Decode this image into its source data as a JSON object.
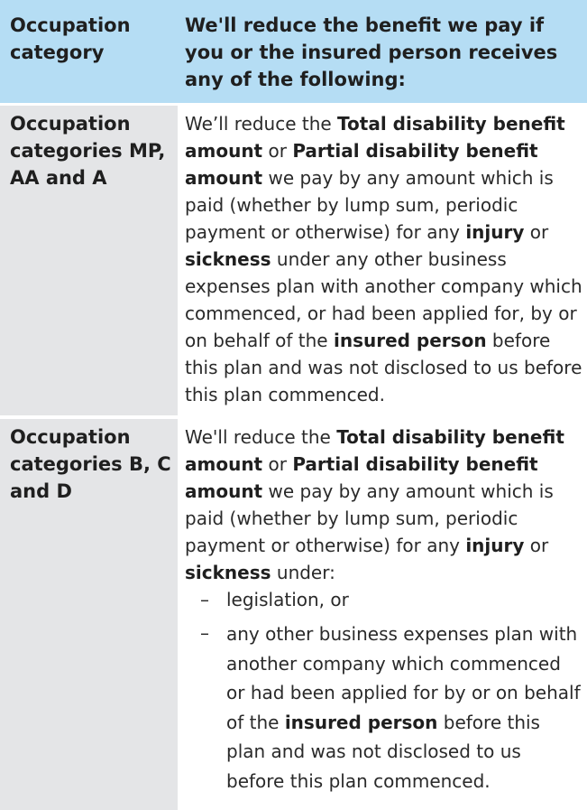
{
  "header": {
    "col1": "Occupation category",
    "col2": "We'll reduce the benefit we pay if you or the insured person receives any of the following:"
  },
  "rows": [
    {
      "category": "Occupation categories MP, AA and A",
      "text": {
        "t1": "We’ll reduce the ",
        "b1": "Total disability benefit amount",
        "t2": " or ",
        "b2": "Partial disability benefit amount",
        "t3": " we pay by any amount which is paid (whether by lump sum, periodic payment or otherwise) for any ",
        "b3": "injury",
        "t4": " or ",
        "b4": "sickness",
        "t5": " under any other business expenses plan with another company which commenced, or had been applied for, by or on behalf of the ",
        "b5": "insured person",
        "t6": " before this plan and was not disclosed to us before this plan commenced."
      }
    },
    {
      "category": "Occupation categories B, C and D",
      "text": {
        "t1": "We'll reduce the ",
        "b1": "Total disability benefit amount",
        "t2": " or ",
        "b2": "Partial disability benefit amount",
        "t3": " we pay by any amount which is paid (whether by lump sum, periodic payment or otherwise) for any ",
        "b3": "injury",
        "t4": " or ",
        "b4": "sickness",
        "t5": " under:"
      },
      "bullets": [
        {
          "marker": "–",
          "t1": "legislation, or"
        },
        {
          "marker": "–",
          "t1": "any other business expenses plan with another company which commenced or had been applied for by or on behalf of the ",
          "b1": "insured person",
          "t2": " before this plan and was not disclosed to us before this plan commenced."
        }
      ]
    }
  ],
  "colors": {
    "header_bg": "#b5ddf4",
    "left_cell_bg": "#e4e5e7"
  }
}
